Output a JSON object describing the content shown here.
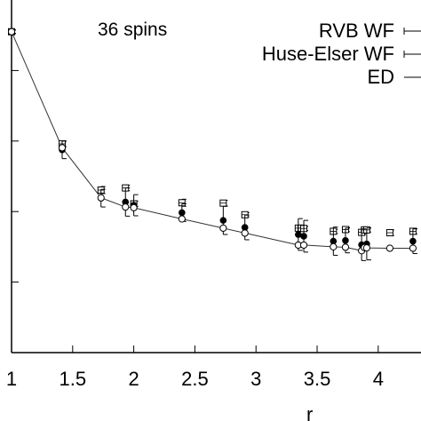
{
  "chart_data": {
    "type": "scatter",
    "annotation": "36 spins",
    "xlabel": "r",
    "ylabel": "",
    "xlim": [
      1,
      4.35
    ],
    "ylim": [
      0,
      1
    ],
    "x_ticks": [
      "1",
      "1.5",
      "2",
      "2.5",
      "3",
      "3.5",
      "4"
    ],
    "x_tick_values": [
      1,
      1.5,
      2,
      2.5,
      3,
      3.5,
      4
    ],
    "y_tick_values": [
      0.2,
      0.4,
      0.6,
      0.8
    ],
    "grid": false,
    "legend_position": "top-right",
    "series": [
      {
        "name": "RVB WF",
        "marker": "square-open",
        "errorbars": true,
        "x": [
          1.0,
          1.414,
          1.732,
          1.932,
          2.0,
          2.394,
          2.732,
          2.909,
          3.346,
          3.369,
          3.391,
          3.633,
          3.732,
          3.864,
          3.887,
          3.906,
          4.095,
          4.284
        ],
        "y": [
          0.91,
          0.592,
          0.461,
          0.467,
          0.422,
          0.425,
          0.424,
          0.391,
          0.353,
          0.353,
          0.352,
          0.344,
          0.349,
          0.341,
          0.348,
          0.348,
          0.34,
          0.344
        ],
        "err": [
          0.005,
          0.008,
          0.01,
          0.008,
          0.008,
          0.01,
          0.008,
          0.006,
          0.006,
          0.006,
          0.006,
          0.006,
          0.006,
          0.006,
          0.006,
          0.006,
          0.008,
          0.008
        ]
      },
      {
        "name": "Huse-Elser WF",
        "marker": "circle-filled",
        "errorbars": true,
        "x": [
          1.0,
          1.414,
          1.732,
          1.932,
          2.0,
          2.394,
          2.732,
          2.909,
          3.346,
          3.391,
          3.633,
          3.732,
          3.864,
          3.906,
          4.284
        ],
        "y": [
          0.91,
          0.575,
          0.438,
          0.427,
          0.418,
          0.397,
          0.375,
          0.355,
          0.335,
          0.33,
          0.316,
          0.318,
          0.306,
          0.308,
          0.316
        ],
        "err": [
          0.005,
          0.025,
          0.025,
          0.04,
          0.03,
          0.025,
          0.04,
          0.035,
          0.045,
          0.045,
          0.04,
          0.035,
          0.045,
          0.045,
          0.035
        ]
      },
      {
        "name": "ED",
        "marker": "circle-open",
        "line": true,
        "x": [
          1.0,
          1.414,
          1.732,
          1.932,
          2.0,
          2.394,
          2.732,
          2.909,
          3.346,
          3.391,
          3.633,
          3.732,
          3.864,
          3.887,
          3.906,
          4.095,
          4.284
        ],
        "y": [
          0.91,
          0.581,
          0.439,
          0.413,
          0.411,
          0.379,
          0.353,
          0.339,
          0.305,
          0.305,
          0.3,
          0.299,
          0.289,
          0.298,
          0.297,
          0.296,
          0.296
        ]
      }
    ]
  }
}
